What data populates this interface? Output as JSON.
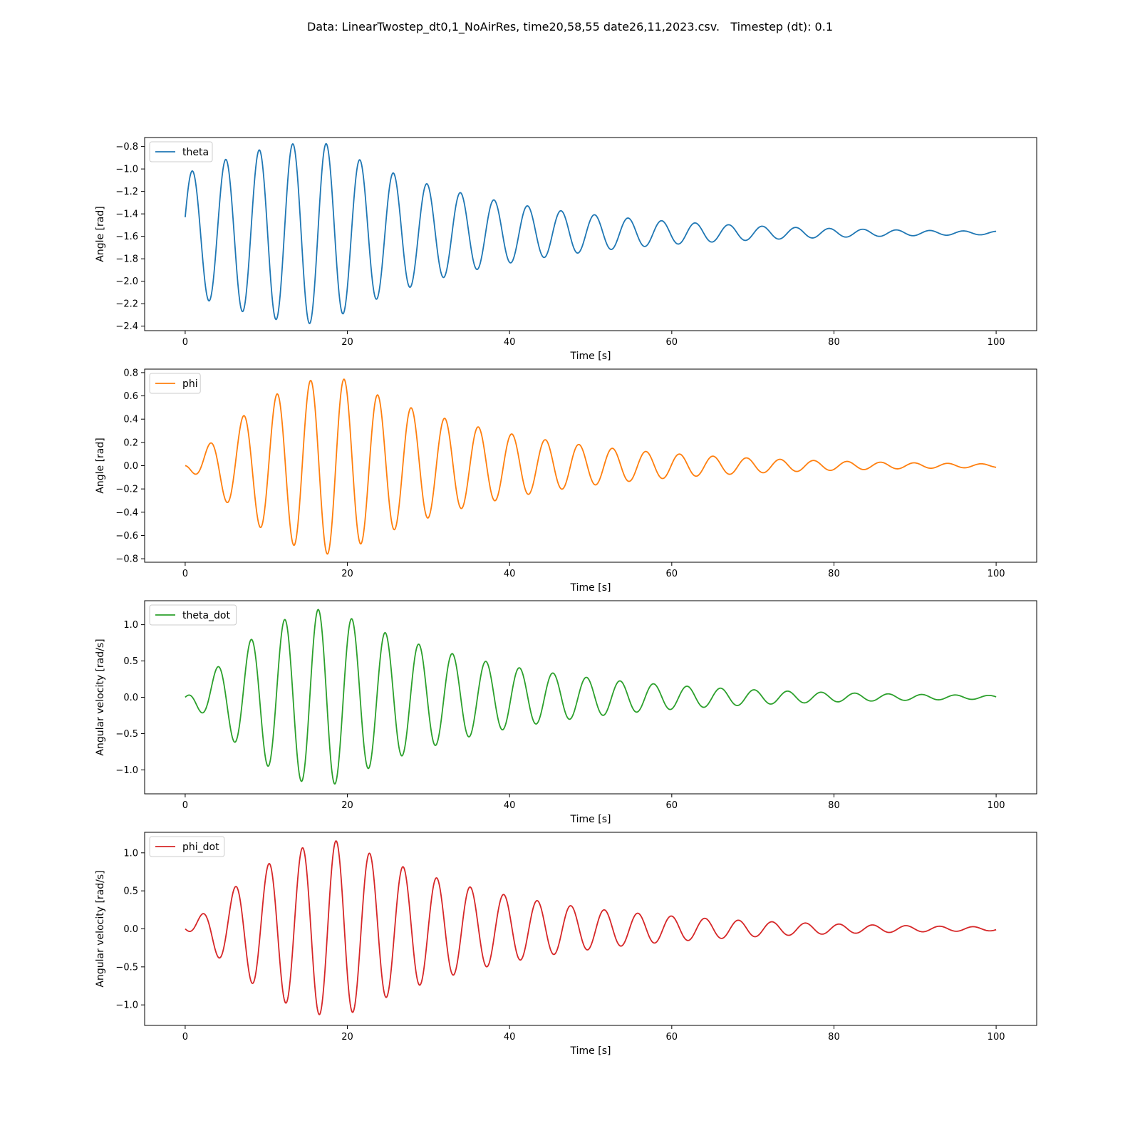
{
  "figure": {
    "title": "Data: LinearTwostep_dt0,1_NoAirRes, time20,58,55 date26,11,2023.csv.   Timestep (dt): 0.1"
  },
  "chart_data": [
    {
      "type": "line",
      "series": [
        {
          "name": "theta",
          "color": "#1f77b4",
          "center": -1.57,
          "amp_max": 0.81,
          "amp_t_peak": 17,
          "amp_end": 0.015,
          "phase_t": 17.4,
          "phase_sign": 1,
          "freq": 0.2418,
          "beat_amp0": 0.53,
          "beat_t0": 0
        }
      ],
      "xlabel": "Time [s]",
      "ylabel": "Angle [rad]",
      "xlim": [
        -5,
        105
      ],
      "ylim": [
        -2.44,
        -0.72
      ],
      "xticks": [
        0,
        20,
        40,
        60,
        80,
        100
      ],
      "yticks": [
        -2.4,
        -2.2,
        -2.0,
        -1.8,
        -1.6,
        -1.4,
        -1.2,
        -1.0,
        -0.8
      ],
      "ytick_labels": [
        "−2.4",
        "−2.2",
        "−2.0",
        "−1.8",
        "−1.6",
        "−1.4",
        "−1.2",
        "−1.0",
        "−0.8"
      ],
      "legend_position": "upper-left"
    },
    {
      "type": "line",
      "series": [
        {
          "name": "phi",
          "color": "#ff7f0e",
          "center": 0.0,
          "amp_max": 0.765,
          "amp_t_peak": 19,
          "amp_end": 0.015,
          "phase_t": 19.6,
          "phase_sign": 1,
          "freq": 0.2418,
          "beat_amp0": 0,
          "beat_t0": 0
        }
      ],
      "xlabel": "Time [s]",
      "ylabel": "Angle [rad]",
      "xlim": [
        -5,
        105
      ],
      "ylim": [
        -0.83,
        0.83
      ],
      "xticks": [
        0,
        20,
        40,
        60,
        80,
        100
      ],
      "yticks": [
        -0.8,
        -0.6,
        -0.4,
        -0.2,
        0.0,
        0.2,
        0.4,
        0.6,
        0.8
      ],
      "ytick_labels": [
        "−0.8",
        "−0.6",
        "−0.4",
        "−0.2",
        "0.0",
        "0.2",
        "0.4",
        "0.6",
        "0.8"
      ],
      "legend_position": "upper-left"
    },
    {
      "type": "line",
      "series": [
        {
          "name": "theta_dot",
          "color": "#2ca02c",
          "center": 0.0,
          "amp_max": 1.22,
          "amp_t_peak": 18,
          "amp_end": 0.025,
          "phase_t": 16.4,
          "phase_sign": 1,
          "freq": 0.2418,
          "beat_amp0": 0,
          "beat_t0": 0
        }
      ],
      "xlabel": "Time [s]",
      "ylabel": "Angular velocity [rad/s]",
      "xlim": [
        -5,
        105
      ],
      "ylim": [
        -1.33,
        1.33
      ],
      "xticks": [
        0,
        20,
        40,
        60,
        80,
        100
      ],
      "yticks": [
        -1.0,
        -0.5,
        0.0,
        0.5,
        1.0
      ],
      "ytick_labels": [
        "−1.0",
        "−0.5",
        "0.0",
        "0.5",
        "1.0"
      ],
      "legend_position": "upper-left"
    },
    {
      "type": "line",
      "series": [
        {
          "name": "phi_dot",
          "color": "#d62728",
          "center": 0.0,
          "amp_max": 1.16,
          "amp_t_peak": 19.5,
          "amp_end": 0.025,
          "phase_t": 18.6,
          "phase_sign": 1,
          "freq": 0.2418,
          "beat_amp0": 0,
          "beat_t0": 0
        }
      ],
      "xlabel": "Time [s]",
      "ylabel": "Angular velocity [rad/s]",
      "xlim": [
        -5,
        105
      ],
      "ylim": [
        -1.27,
        1.27
      ],
      "xticks": [
        0,
        20,
        40,
        60,
        80,
        100
      ],
      "yticks": [
        -1.0,
        -0.5,
        0.0,
        0.5,
        1.0
      ],
      "ytick_labels": [
        "−1.0",
        "−0.5",
        "0.0",
        "0.5",
        "1.0"
      ],
      "legend_position": "upper-left"
    }
  ]
}
